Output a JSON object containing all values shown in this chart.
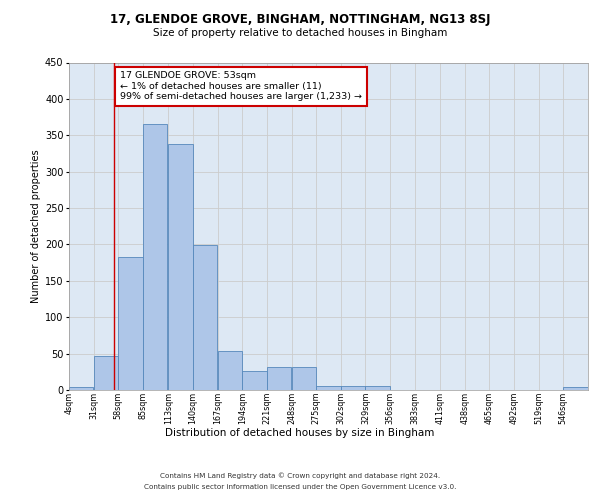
{
  "title": "17, GLENDOE GROVE, BINGHAM, NOTTINGHAM, NG13 8SJ",
  "subtitle": "Size of property relative to detached houses in Bingham",
  "xlabel": "Distribution of detached houses by size in Bingham",
  "ylabel": "Number of detached properties",
  "bar_color": "#aec6e8",
  "bar_edge_color": "#5588bb",
  "grid_color": "#cccccc",
  "bg_color": "#dde8f4",
  "annotation_text": "17 GLENDOE GROVE: 53sqm\n← 1% of detached houses are smaller (11)\n99% of semi-detached houses are larger (1,233) →",
  "annotation_box_color": "#ffffff",
  "annotation_border_color": "#cc0000",
  "property_line_x": 53,
  "categories": [
    "4sqm",
    "31sqm",
    "58sqm",
    "85sqm",
    "113sqm",
    "140sqm",
    "167sqm",
    "194sqm",
    "221sqm",
    "248sqm",
    "275sqm",
    "302sqm",
    "329sqm",
    "356sqm",
    "383sqm",
    "411sqm",
    "438sqm",
    "465sqm",
    "492sqm",
    "519sqm",
    "546sqm"
  ],
  "bin_edges": [
    4,
    31,
    58,
    85,
    113,
    140,
    167,
    194,
    221,
    248,
    275,
    302,
    329,
    356,
    383,
    411,
    438,
    465,
    492,
    519,
    546
  ],
  "bin_width": 27,
  "values": [
    4,
    47,
    183,
    366,
    338,
    199,
    54,
    26,
    31,
    32,
    6,
    6,
    6,
    0,
    0,
    0,
    0,
    0,
    0,
    0,
    4
  ],
  "ylim": [
    0,
    450
  ],
  "yticks": [
    0,
    50,
    100,
    150,
    200,
    250,
    300,
    350,
    400,
    450
  ],
  "footer_line1": "Contains HM Land Registry data © Crown copyright and database right 2024.",
  "footer_line2": "Contains public sector information licensed under the Open Government Licence v3.0."
}
